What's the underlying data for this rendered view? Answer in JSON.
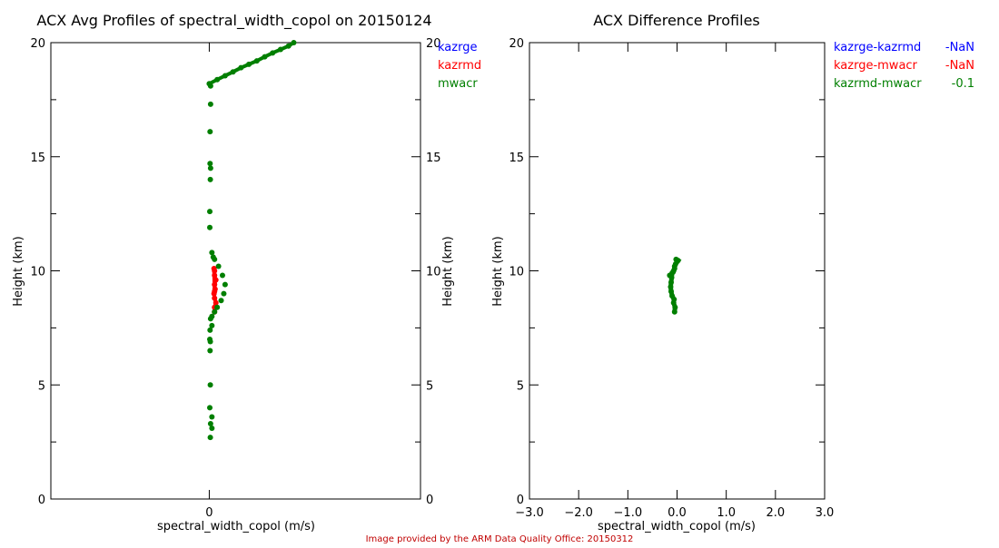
{
  "footer": "Image provided by the ARM Data Quality Office: 20150312",
  "chart_data": [
    {
      "type": "scatter",
      "title": "ACX Avg Profiles of spectral_width_copol on 20150124",
      "xlabel": "spectral_width_copol (m/s)",
      "ylabel": "Height (km)",
      "xlim": [
        -0.6,
        0.8
      ],
      "ylim": [
        0,
        20
      ],
      "xticks": [
        "0"
      ],
      "xtick_values": [
        0
      ],
      "yticks": [
        "0",
        "5",
        "10",
        "15",
        "20"
      ],
      "legend": [
        {
          "name": "kazrge",
          "color": "#0000ff"
        },
        {
          "name": "kazrmd",
          "color": "#ff0000"
        },
        {
          "name": "mwacr",
          "color": "#007f00"
        }
      ],
      "series": [
        {
          "name": "kazrge",
          "color": "#0000ff",
          "x": [],
          "y": []
        },
        {
          "name": "kazrmd",
          "color": "#ff0000",
          "x": [
            0.02,
            0.02,
            0.025,
            0.02,
            0.018,
            0.022,
            0.02,
            0.025,
            0.02,
            0.02,
            0.018,
            0.02
          ],
          "y": [
            8.2,
            8.4,
            8.6,
            8.8,
            9.0,
            9.2,
            9.4,
            9.6,
            9.8,
            10.0,
            10.1,
            9.1
          ]
        },
        {
          "name": "mwacr",
          "color": "#007f00",
          "x": [
            0.0,
            0.03,
            0.06,
            0.09,
            0.12,
            0.15,
            0.18,
            0.21,
            0.24,
            0.27,
            0.3,
            0.32,
            0.005,
            0.005,
            0.003,
            0.003,
            0.005,
            0.004,
            0.002,
            0.002,
            0.01,
            0.02,
            0.035,
            0.05,
            0.06,
            0.055,
            0.045,
            0.03,
            0.02,
            0.015,
            0.01,
            0.005,
            0.01,
            0.003,
            0.002,
            0.004,
            0.003,
            0.004,
            0.002,
            0.01,
            0.005,
            0.01,
            0.004
          ],
          "y": [
            18.2,
            18.38,
            18.55,
            18.72,
            18.9,
            19.05,
            19.2,
            19.38,
            19.55,
            19.7,
            19.85,
            20.0,
            18.1,
            17.3,
            16.1,
            14.7,
            14.5,
            14.0,
            12.6,
            11.9,
            10.8,
            10.5,
            10.2,
            9.8,
            9.4,
            9.0,
            8.7,
            8.4,
            8.2,
            10.6,
            8.0,
            7.9,
            7.6,
            7.4,
            7.0,
            6.9,
            6.5,
            5.0,
            4.0,
            3.6,
            3.3,
            3.1,
            2.7
          ]
        }
      ]
    },
    {
      "type": "scatter",
      "title": "ACX Difference Profiles",
      "xlabel": "spectral_width_copol (m/s)",
      "ylabel": "Height (km)",
      "xlim": [
        -3.0,
        3.0
      ],
      "ylim": [
        0,
        20
      ],
      "xticks": [
        "-3.0",
        "-2.0",
        "-1.0",
        "0.0",
        "1.0",
        "2.0",
        "3.0"
      ],
      "yticks": [
        "0",
        "5",
        "10",
        "15",
        "20"
      ],
      "legend": [
        {
          "name": "kazrge-kazrmd",
          "value": "-NaN",
          "color": "#0000ff"
        },
        {
          "name": "kazrge-mwacr",
          "value": "-NaN",
          "color": "#ff0000"
        },
        {
          "name": "kazrmd-mwacr",
          "value": "-0.1",
          "color": "#007f00"
        }
      ],
      "series": [
        {
          "name": "kazrmd-mwacr",
          "color": "#007f00",
          "x": [
            -0.05,
            -0.04,
            -0.07,
            -0.06,
            -0.1,
            -0.12,
            -0.13,
            -0.12,
            -0.11,
            -0.1,
            -0.08,
            -0.07,
            -0.05,
            -0.05,
            -0.03,
            0.0,
            0.02,
            -0.02,
            -0.15
          ],
          "y": [
            8.2,
            8.4,
            8.6,
            8.75,
            8.9,
            9.1,
            9.3,
            9.5,
            9.7,
            9.9,
            9.95,
            10.0,
            10.1,
            10.2,
            10.3,
            10.4,
            10.45,
            10.5,
            9.8
          ]
        }
      ]
    }
  ]
}
